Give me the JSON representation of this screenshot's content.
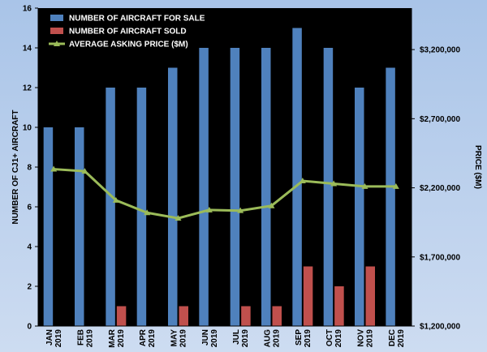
{
  "chart_data": {
    "type": "bar",
    "categories": [
      [
        "JAN",
        "2019"
      ],
      [
        "FEB",
        "2019"
      ],
      [
        "MAR",
        "2019"
      ],
      [
        "APR",
        "2019"
      ],
      [
        "MAY",
        "2019"
      ],
      [
        "JUN",
        "2019"
      ],
      [
        "JUL",
        "2019"
      ],
      [
        "AUG",
        "2019"
      ],
      [
        "SEP",
        "2019"
      ],
      [
        "OCT",
        "2019"
      ],
      [
        "NOV",
        "2019"
      ],
      [
        "DEC",
        "2019"
      ]
    ],
    "series": [
      {
        "name": "NUMBER OF AIRCRAFT FOR SALE",
        "type": "bar",
        "axis": "left",
        "color": "#4f81bd",
        "values": [
          10,
          10,
          12,
          12,
          13,
          14,
          14,
          14,
          15,
          14,
          12,
          13
        ]
      },
      {
        "name": "NUMBER OF AIRCRAFT SOLD",
        "type": "bar",
        "axis": "left",
        "color": "#c0504d",
        "values": [
          0,
          0,
          1,
          0,
          1,
          0,
          1,
          1,
          3,
          2,
          3,
          0
        ]
      },
      {
        "name": "AVERAGE ASKING PRICE ($M)",
        "type": "line",
        "axis": "right",
        "color": "#9bbb59",
        "values": [
          2335000,
          2320000,
          2110000,
          2020000,
          1980000,
          2040000,
          2035000,
          2070000,
          2250000,
          2230000,
          2210000,
          2210000
        ]
      }
    ],
    "ylabel": "NUMBER OF CJ1+ AIRCRAFT",
    "ylim": [
      0,
      16
    ],
    "yticks": [
      0,
      2,
      4,
      6,
      8,
      10,
      12,
      14,
      16
    ],
    "y2label": "PRICE ($M)",
    "y2lim": [
      1200000,
      3500000
    ],
    "y2ticks": [
      1200000,
      1700000,
      2200000,
      2700000,
      3200000
    ],
    "y2tick_labels": [
      "$1,200,000",
      "$1,700,000",
      "$2,200,000",
      "$2,700,000",
      "$3,200,000"
    ],
    "legend_position": "top-left",
    "grid": false,
    "plot_background": "#000000"
  }
}
